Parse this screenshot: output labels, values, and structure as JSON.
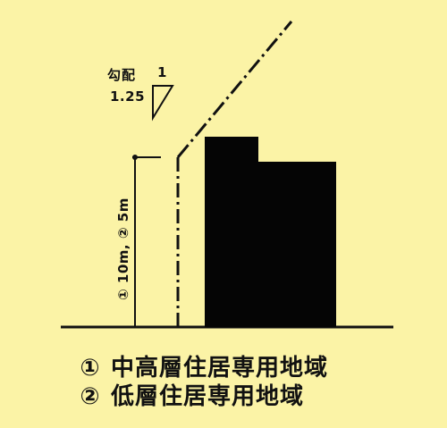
{
  "slope": {
    "label": "勾配",
    "top": "1",
    "bottom": "1.25"
  },
  "height_label": "① 10m, ② 5m",
  "legend": [
    {
      "marker": "①",
      "text": "中高層住居専用地域"
    },
    {
      "marker": "②",
      "text": "低層住居専用地域"
    }
  ],
  "colors": {
    "background": "#fbf3a6",
    "ink": "#111111",
    "building": "#050505"
  }
}
